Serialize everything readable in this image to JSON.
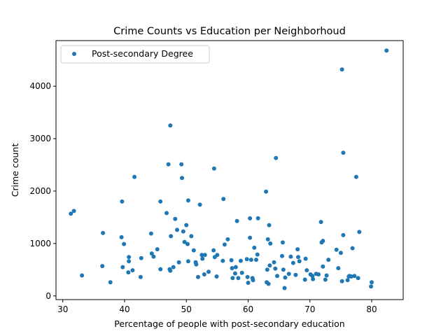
{
  "chart_data": {
    "type": "scatter",
    "title": "Crime Counts vs Education per Neighborhoud",
    "xlabel": "Percentage of people with post-secondary education",
    "ylabel": "Crime count",
    "xlim": [
      28.9,
      85.1
    ],
    "ylim": [
      -70,
      4870
    ],
    "xticks": [
      30,
      40,
      50,
      60,
      70,
      80
    ],
    "yticks": [
      0,
      1000,
      2000,
      3000,
      4000
    ],
    "grid": false,
    "legend_position": "upper-left",
    "series": [
      {
        "name": "Post-secondary Degree",
        "color": "#1f77b4",
        "points": [
          [
            31.3,
            1570
          ],
          [
            31.8,
            1620
          ],
          [
            33.1,
            390
          ],
          [
            36.4,
            570
          ],
          [
            36.5,
            1200
          ],
          [
            37.7,
            260
          ],
          [
            39.5,
            1120
          ],
          [
            39.6,
            1800
          ],
          [
            39.7,
            550
          ],
          [
            39.9,
            990
          ],
          [
            40.6,
            450
          ],
          [
            40.7,
            660
          ],
          [
            40.7,
            740
          ],
          [
            41.3,
            490
          ],
          [
            41.6,
            2270
          ],
          [
            42.6,
            360
          ],
          [
            42.7,
            720
          ],
          [
            44.3,
            1190
          ],
          [
            44.4,
            810
          ],
          [
            44.7,
            750
          ],
          [
            45.3,
            890
          ],
          [
            45.8,
            1800
          ],
          [
            45.8,
            510
          ],
          [
            46.8,
            1580
          ],
          [
            47.1,
            2510
          ],
          [
            47.3,
            510
          ],
          [
            47.4,
            3250
          ],
          [
            47.4,
            480
          ],
          [
            47.5,
            1140
          ],
          [
            47.9,
            550
          ],
          [
            48.2,
            1470
          ],
          [
            48.5,
            1260
          ],
          [
            48.8,
            640
          ],
          [
            49.2,
            2510
          ],
          [
            49.3,
            2250
          ],
          [
            49.5,
            1230
          ],
          [
            49.7,
            1030
          ],
          [
            50.0,
            1350
          ],
          [
            50.2,
            990
          ],
          [
            50.3,
            1820
          ],
          [
            50.3,
            660
          ],
          [
            50.8,
            1140
          ],
          [
            51.2,
            870
          ],
          [
            51.5,
            640
          ],
          [
            51.6,
            600
          ],
          [
            51.9,
            360
          ],
          [
            52.2,
            1740
          ],
          [
            52.5,
            780
          ],
          [
            52.6,
            710
          ],
          [
            52.9,
            410
          ],
          [
            53.0,
            780
          ],
          [
            53.6,
            460
          ],
          [
            54.4,
            870
          ],
          [
            54.5,
            2430
          ],
          [
            54.6,
            740
          ],
          [
            54.9,
            370
          ],
          [
            55.0,
            780
          ],
          [
            55.9,
            670
          ],
          [
            56.0,
            1850
          ],
          [
            56.2,
            980
          ],
          [
            56.7,
            1080
          ],
          [
            57.3,
            680
          ],
          [
            57.4,
            530
          ],
          [
            57.5,
            340
          ],
          [
            57.9,
            430
          ],
          [
            58.0,
            550
          ],
          [
            58.2,
            1430
          ],
          [
            58.4,
            340
          ],
          [
            58.8,
            670
          ],
          [
            59.0,
            440
          ],
          [
            59.8,
            700
          ],
          [
            59.9,
            360
          ],
          [
            60.0,
            250
          ],
          [
            60.3,
            1480
          ],
          [
            60.3,
            1110
          ],
          [
            60.5,
            690
          ],
          [
            60.7,
            340
          ],
          [
            60.8,
            300
          ],
          [
            61.0,
            920
          ],
          [
            61.3,
            690
          ],
          [
            61.5,
            790
          ],
          [
            61.6,
            1480
          ],
          [
            62.9,
            1990
          ],
          [
            63.0,
            260
          ],
          [
            63.1,
            500
          ],
          [
            63.2,
            1080
          ],
          [
            63.3,
            230
          ],
          [
            63.4,
            1350
          ],
          [
            63.5,
            580
          ],
          [
            63.6,
            1000
          ],
          [
            64.2,
            640
          ],
          [
            64.4,
            520
          ],
          [
            64.5,
            2630
          ],
          [
            64.7,
            380
          ],
          [
            65.5,
            760
          ],
          [
            65.6,
            1020
          ],
          [
            65.7,
            500
          ],
          [
            65.9,
            150
          ],
          [
            66.0,
            350
          ],
          [
            66.6,
            420
          ],
          [
            66.9,
            750
          ],
          [
            67.3,
            630
          ],
          [
            67.7,
            400
          ],
          [
            68.0,
            890
          ],
          [
            68.1,
            740
          ],
          [
            68.3,
            660
          ],
          [
            69.2,
            310
          ],
          [
            69.3,
            710
          ],
          [
            69.5,
            490
          ],
          [
            70.1,
            410
          ],
          [
            70.4,
            380
          ],
          [
            70.5,
            320
          ],
          [
            71.0,
            420
          ],
          [
            71.4,
            410
          ],
          [
            71.8,
            1410
          ],
          [
            71.9,
            1020
          ],
          [
            72.1,
            1050
          ],
          [
            72.1,
            560
          ],
          [
            72.5,
            310
          ],
          [
            72.7,
            390
          ],
          [
            73.0,
            690
          ],
          [
            74.3,
            880
          ],
          [
            74.6,
            530
          ],
          [
            75.0,
            820
          ],
          [
            75.2,
            4320
          ],
          [
            75.2,
            280
          ],
          [
            75.4,
            1160
          ],
          [
            75.4,
            2730
          ],
          [
            76.1,
            300
          ],
          [
            76.3,
            370
          ],
          [
            76.4,
            380
          ],
          [
            76.7,
            370
          ],
          [
            76.9,
            910
          ],
          [
            77.2,
            380
          ],
          [
            77.5,
            2270
          ],
          [
            77.8,
            340
          ],
          [
            78.0,
            1220
          ],
          [
            79.9,
            180
          ],
          [
            80.0,
            260
          ],
          [
            82.4,
            4680
          ]
        ]
      }
    ]
  }
}
